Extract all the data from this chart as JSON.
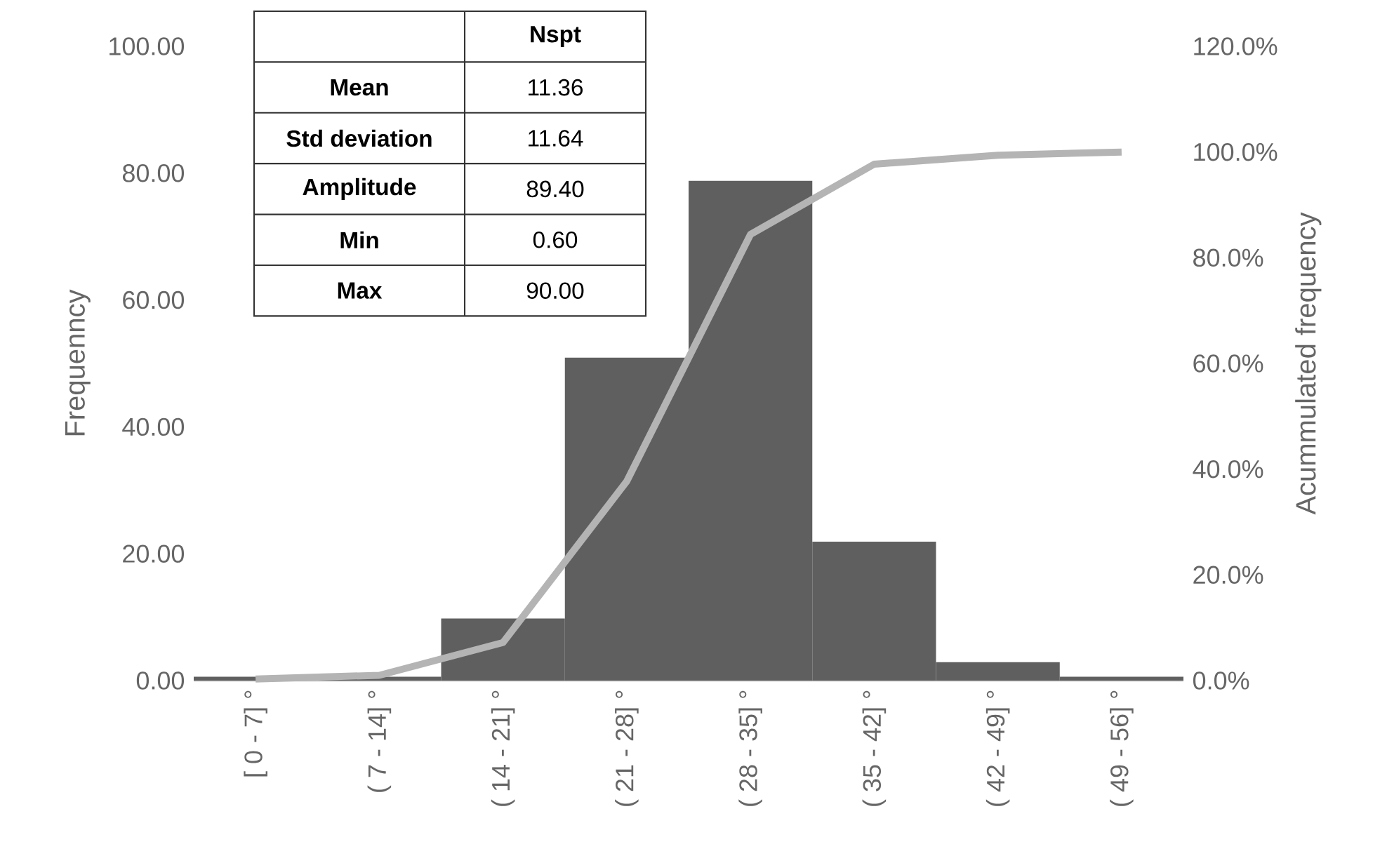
{
  "chart_data": {
    "type": "bar",
    "ylabel": "Frequenncy",
    "y2label": "Acummulated frequency",
    "categories": [
      "[ 0 - 7] °",
      "( 7 - 14] °",
      "( 14 - 21] °",
      "( 21 - 28] °",
      "( 28 - 35] °",
      "( 35 - 42] °",
      "( 42 - 49] °",
      "( 49 - 56] °"
    ],
    "series": [
      {
        "color": "#5f5f5f",
        "values": [
          0.6,
          0.6,
          9.8,
          50.9,
          78.8,
          21.9,
          2.9,
          0.6
        ]
      },
      {
        "type": "line",
        "axis": "y2",
        "color": "#b4b4b4",
        "values": [
          0.3,
          1.0,
          7.2,
          37.7,
          84.4,
          97.7,
          99.4,
          100.0
        ]
      }
    ],
    "ylim": [
      0,
      100
    ],
    "yticks": [
      {
        "value": 0,
        "label": "0.00"
      },
      {
        "value": 20,
        "label": "20.00"
      },
      {
        "value": 40,
        "label": "40.00"
      },
      {
        "value": 60,
        "label": "60.00"
      },
      {
        "value": 80,
        "label": "80.00"
      },
      {
        "value": 100,
        "label": "100.00"
      }
    ],
    "y2lim": [
      0,
      120
    ],
    "y2ticks": [
      {
        "value": 0,
        "label": "0.0%"
      },
      {
        "value": 20,
        "label": "20.0%"
      },
      {
        "value": 40,
        "label": "40.0%"
      },
      {
        "value": 60,
        "label": "60.0%"
      },
      {
        "value": 80,
        "label": "80.0%"
      },
      {
        "value": 100,
        "label": "100.0%"
      },
      {
        "value": 120,
        "label": "120.0%"
      }
    ],
    "annotations": [
      "Nspt",
      "Mean",
      "11.36",
      "Std deviation",
      "11.64",
      "Amplitude",
      "89.40",
      "Min",
      "0.60",
      "Max",
      "90.00"
    ],
    "grid": false,
    "legend": false,
    "marker": "none",
    "line_style": "solid"
  }
}
